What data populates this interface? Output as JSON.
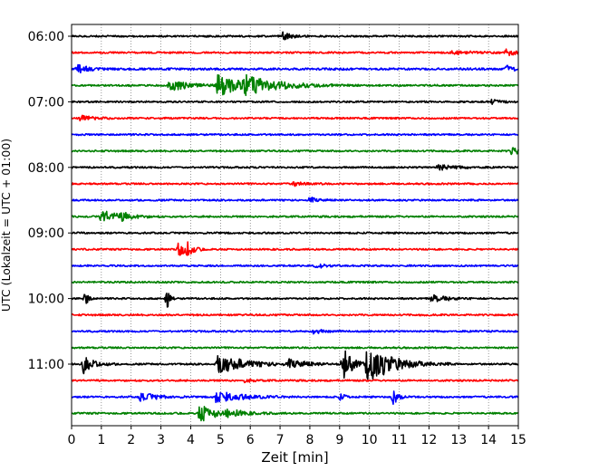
{
  "chart_data": {
    "type": "line",
    "title": "",
    "xlabel": "Zeit  [min]",
    "ylabel": "UTC (Lokalzeit = UTC + 01:00)",
    "xlim": [
      0,
      15
    ],
    "x_ticks": [
      0,
      1,
      2,
      3,
      4,
      5,
      6,
      7,
      8,
      9,
      10,
      11,
      12,
      13,
      14,
      15
    ],
    "grid": "vertical-dotted",
    "row_minutes": 15,
    "y_tick_labels": [
      "06:00",
      "07:00",
      "08:00",
      "09:00",
      "10:00",
      "11:00"
    ],
    "trace_colors": [
      "#000000",
      "#ff0000",
      "#0000ff",
      "#008000"
    ],
    "rows": [
      {
        "start": "06:00",
        "color": "#000000",
        "noise": 0.08,
        "events": [
          {
            "t": 7.1,
            "dur": 0.5,
            "amp": 0.35
          }
        ]
      },
      {
        "start": "06:15",
        "color": "#ff0000",
        "noise": 0.08,
        "events": [
          {
            "t": 12.8,
            "dur": 1.0,
            "amp": 0.18
          },
          {
            "t": 14.6,
            "dur": 0.5,
            "amp": 0.3
          }
        ]
      },
      {
        "start": "06:30",
        "color": "#0000ff",
        "noise": 0.1,
        "events": [
          {
            "t": 0.2,
            "dur": 0.5,
            "amp": 0.4
          },
          {
            "t": 14.6,
            "dur": 0.4,
            "amp": 0.3
          }
        ]
      },
      {
        "start": "06:45",
        "color": "#008000",
        "noise": 0.08,
        "events": [
          {
            "t": 3.3,
            "dur": 0.9,
            "amp": 0.55
          },
          {
            "t": 4.9,
            "dur": 1.4,
            "amp": 1.0
          },
          {
            "t": 5.8,
            "dur": 1.8,
            "amp": 0.75
          }
        ]
      },
      {
        "start": "07:00",
        "color": "#000000",
        "noise": 0.08,
        "events": [
          {
            "t": 14.1,
            "dur": 0.5,
            "amp": 0.22
          }
        ]
      },
      {
        "start": "07:15",
        "color": "#ff0000",
        "noise": 0.08,
        "events": [
          {
            "t": 0.3,
            "dur": 0.6,
            "amp": 0.25
          }
        ]
      },
      {
        "start": "07:30",
        "color": "#0000ff",
        "noise": 0.08,
        "events": []
      },
      {
        "start": "07:45",
        "color": "#008000",
        "noise": 0.08,
        "events": [
          {
            "t": 14.8,
            "dur": 0.4,
            "amp": 0.45
          }
        ]
      },
      {
        "start": "08:00",
        "color": "#000000",
        "noise": 0.08,
        "events": [
          {
            "t": 12.3,
            "dur": 0.8,
            "amp": 0.3
          }
        ]
      },
      {
        "start": "08:15",
        "color": "#ff0000",
        "noise": 0.08,
        "events": [
          {
            "t": 7.4,
            "dur": 0.6,
            "amp": 0.22
          }
        ]
      },
      {
        "start": "08:30",
        "color": "#0000ff",
        "noise": 0.08,
        "events": [
          {
            "t": 8.0,
            "dur": 0.4,
            "amp": 0.28
          }
        ]
      },
      {
        "start": "08:45",
        "color": "#008000",
        "noise": 0.08,
        "events": [
          {
            "t": 1.0,
            "dur": 0.9,
            "amp": 0.6
          },
          {
            "t": 1.7,
            "dur": 0.6,
            "amp": 0.25
          }
        ]
      },
      {
        "start": "09:00",
        "color": "#000000",
        "noise": 0.08,
        "events": []
      },
      {
        "start": "09:15",
        "color": "#ff0000",
        "noise": 0.08,
        "events": [
          {
            "t": 3.6,
            "dur": 0.35,
            "amp": 0.7
          },
          {
            "t": 3.9,
            "dur": 0.3,
            "amp": 0.55
          }
        ]
      },
      {
        "start": "09:30",
        "color": "#0000ff",
        "noise": 0.08,
        "events": [
          {
            "t": 8.2,
            "dur": 0.5,
            "amp": 0.22
          }
        ]
      },
      {
        "start": "09:45",
        "color": "#008000",
        "noise": 0.08,
        "events": []
      },
      {
        "start": "10:00",
        "color": "#000000",
        "noise": 0.08,
        "events": [
          {
            "t": 0.45,
            "dur": 0.15,
            "amp": 1.0
          },
          {
            "t": 3.2,
            "dur": 0.15,
            "amp": 1.0
          },
          {
            "t": 12.1,
            "dur": 0.8,
            "amp": 0.35
          }
        ]
      },
      {
        "start": "10:15",
        "color": "#ff0000",
        "noise": 0.08,
        "events": []
      },
      {
        "start": "10:30",
        "color": "#0000ff",
        "noise": 0.08,
        "events": [
          {
            "t": 8.1,
            "dur": 0.5,
            "amp": 0.22
          }
        ]
      },
      {
        "start": "10:45",
        "color": "#008000",
        "noise": 0.08,
        "events": []
      },
      {
        "start": "11:00",
        "color": "#000000",
        "noise": 0.08,
        "events": [
          {
            "t": 0.4,
            "dur": 0.5,
            "amp": 1.0
          },
          {
            "t": 4.9,
            "dur": 1.5,
            "amp": 0.9
          },
          {
            "t": 7.3,
            "dur": 0.9,
            "amp": 0.4
          },
          {
            "t": 9.1,
            "dur": 0.5,
            "amp": 1.6
          },
          {
            "t": 9.9,
            "dur": 1.3,
            "amp": 1.9
          }
        ]
      },
      {
        "start": "11:15",
        "color": "#ff0000",
        "noise": 0.08,
        "events": [
          {
            "t": 5.8,
            "dur": 0.5,
            "amp": 0.15
          }
        ]
      },
      {
        "start": "11:30",
        "color": "#0000ff",
        "noise": 0.08,
        "events": [
          {
            "t": 2.3,
            "dur": 0.8,
            "amp": 0.45
          },
          {
            "t": 4.8,
            "dur": 1.3,
            "amp": 0.6
          },
          {
            "t": 9.0,
            "dur": 0.3,
            "amp": 0.3
          },
          {
            "t": 10.8,
            "dur": 0.25,
            "amp": 0.8
          }
        ]
      },
      {
        "start": "11:45",
        "color": "#008000",
        "noise": 0.08,
        "events": [
          {
            "t": 4.3,
            "dur": 0.7,
            "amp": 0.95
          },
          {
            "t": 5.2,
            "dur": 1.0,
            "amp": 0.35
          }
        ]
      }
    ]
  }
}
